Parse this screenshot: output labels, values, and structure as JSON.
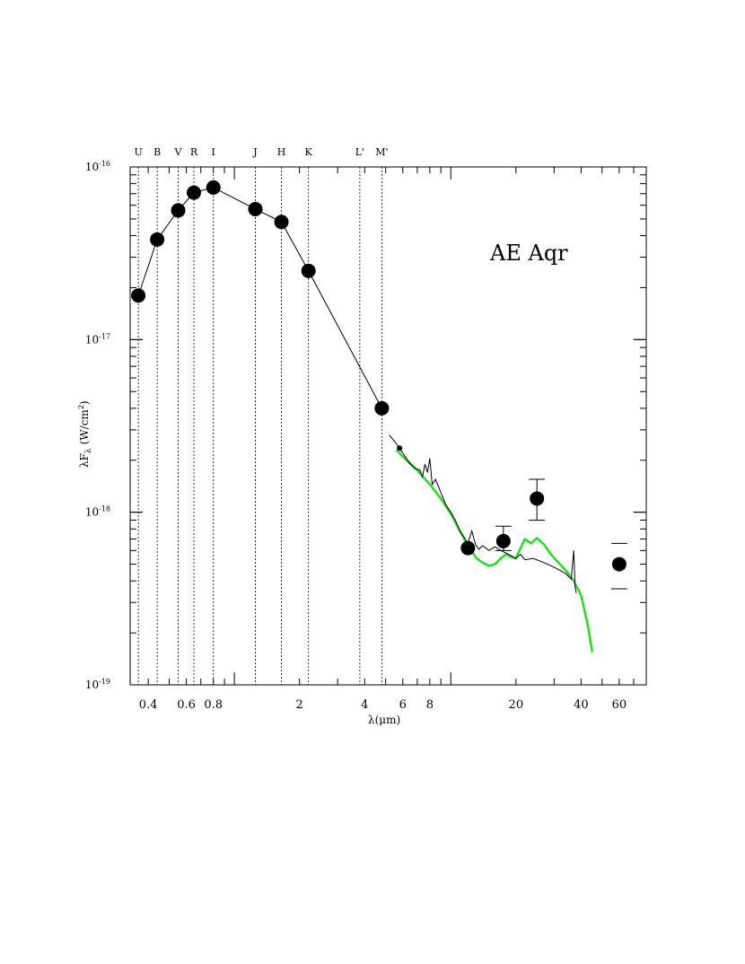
{
  "chart_data": {
    "type": "scatter",
    "title": "AE  Aqr",
    "xlabel": "λ(μm)",
    "ylabel": "λF",
    "ylabel_sub": "λ",
    "ylabel_units": "(W/cm",
    "ylabel_units_sup": "2",
    "ylabel_units_end": ")",
    "x_scale": "log",
    "y_scale": "log",
    "xlim": [
      0.33,
      80
    ],
    "ylim": [
      1e-19,
      1e-16
    ],
    "x_ticks": [
      {
        "value": 0.4,
        "label": "0.4"
      },
      {
        "value": 0.6,
        "label": "0.6"
      },
      {
        "value": 0.8,
        "label": "0.8"
      },
      {
        "value": 2,
        "label": "2"
      },
      {
        "value": 4,
        "label": "4"
      },
      {
        "value": 6,
        "label": "6"
      },
      {
        "value": 8,
        "label": "8"
      },
      {
        "value": 20,
        "label": "20"
      },
      {
        "value": 40,
        "label": "40"
      },
      {
        "value": 60,
        "label": "60"
      }
    ],
    "y_ticks": [
      {
        "value": 1e-16,
        "base": "10",
        "exp": "-16"
      },
      {
        "value": 1e-17,
        "base": "10",
        "exp": "-17"
      },
      {
        "value": 1e-18,
        "base": "10",
        "exp": "-18"
      },
      {
        "value": 1e-19,
        "base": "10",
        "exp": "-19"
      }
    ],
    "bands": [
      {
        "label": "U",
        "x": 0.36
      },
      {
        "label": "B",
        "x": 0.44
      },
      {
        "label": "V",
        "x": 0.55
      },
      {
        "label": "R",
        "x": 0.65
      },
      {
        "label": "I",
        "x": 0.8
      },
      {
        "label": "J",
        "x": 1.25
      },
      {
        "label": "H",
        "x": 1.65
      },
      {
        "label": "K",
        "x": 2.2
      },
      {
        "label": "L'",
        "x": 3.8
      },
      {
        "label": "M'",
        "x": 4.8
      }
    ],
    "photometry": [
      {
        "x": 0.36,
        "y": 1.8e-17
      },
      {
        "x": 0.44,
        "y": 3.8e-17
      },
      {
        "x": 0.55,
        "y": 5.6e-17
      },
      {
        "x": 0.65,
        "y": 7.1e-17
      },
      {
        "x": 0.8,
        "y": 7.6e-17
      },
      {
        "x": 1.25,
        "y": 5.7e-17
      },
      {
        "x": 1.65,
        "y": 4.8e-17
      },
      {
        "x": 2.2,
        "y": 2.5e-17
      },
      {
        "x": 4.8,
        "y": 4e-18
      }
    ],
    "sed_model_line": [
      {
        "x": 0.36,
        "y": 1.8e-17
      },
      {
        "x": 0.44,
        "y": 3.8e-17
      },
      {
        "x": 0.55,
        "y": 5.6e-17
      },
      {
        "x": 0.65,
        "y": 7.1e-17
      },
      {
        "x": 0.8,
        "y": 7.6e-17
      },
      {
        "x": 1.25,
        "y": 5.7e-17
      },
      {
        "x": 1.65,
        "y": 4.8e-17
      },
      {
        "x": 2.2,
        "y": 2.5e-17
      },
      {
        "x": 4.8,
        "y": 4e-18
      }
    ],
    "ir_points": [
      {
        "x": 5.8,
        "y": 2.35e-18,
        "small": true
      },
      {
        "x": 12,
        "y": 6.2e-19
      },
      {
        "x": 17.5,
        "y": 6.8e-19,
        "err_low": 6e-19,
        "err_high": 8.3e-19
      },
      {
        "x": 25,
        "y": 1.2e-18,
        "err_low": 9e-19,
        "err_high": 1.55e-18
      },
      {
        "x": 60,
        "y": 5e-19,
        "err_low": 3.6e-19,
        "err_high": 6.6e-19,
        "caps_only": true
      }
    ],
    "spectrum": [
      {
        "x": 5.2,
        "y": 2.8e-18
      },
      {
        "x": 5.6,
        "y": 2.5e-18
      },
      {
        "x": 6.0,
        "y": 2.2e-18
      },
      {
        "x": 6.4,
        "y": 1.95e-18
      },
      {
        "x": 6.8,
        "y": 1.8e-18
      },
      {
        "x": 7.2,
        "y": 1.75e-18
      },
      {
        "x": 7.4,
        "y": 1.6e-18
      },
      {
        "x": 7.6,
        "y": 1.9e-18
      },
      {
        "x": 7.8,
        "y": 1.7e-18
      },
      {
        "x": 8.0,
        "y": 2.05e-18
      },
      {
        "x": 8.2,
        "y": 1.45e-18
      },
      {
        "x": 8.5,
        "y": 1.55e-18
      },
      {
        "x": 9.0,
        "y": 1.3e-18
      },
      {
        "x": 9.5,
        "y": 1.1e-18
      },
      {
        "x": 10.0,
        "y": 1e-18
      },
      {
        "x": 10.5,
        "y": 9e-19
      },
      {
        "x": 11.0,
        "y": 7.8e-19
      },
      {
        "x": 11.5,
        "y": 7.2e-19
      },
      {
        "x": 12.0,
        "y": 6.6e-19
      },
      {
        "x": 12.5,
        "y": 7.8e-19
      },
      {
        "x": 13.0,
        "y": 6.5e-19
      },
      {
        "x": 13.5,
        "y": 6.1e-19
      },
      {
        "x": 14.0,
        "y": 6.4e-19
      },
      {
        "x": 15.0,
        "y": 6e-19
      },
      {
        "x": 16.0,
        "y": 6.3e-19
      },
      {
        "x": 17.0,
        "y": 6e-19
      },
      {
        "x": 18.0,
        "y": 5.8e-19
      },
      {
        "x": 19.0,
        "y": 5.6e-19
      },
      {
        "x": 20.0,
        "y": 5.4e-19
      },
      {
        "x": 21.0,
        "y": 5.7e-19
      },
      {
        "x": 22.0,
        "y": 5.3e-19
      },
      {
        "x": 24.0,
        "y": 5.4e-19
      },
      {
        "x": 26.0,
        "y": 5.2e-19
      },
      {
        "x": 28.0,
        "y": 5e-19
      },
      {
        "x": 30.0,
        "y": 4.8e-19
      },
      {
        "x": 32.0,
        "y": 4.6e-19
      },
      {
        "x": 34.0,
        "y": 4.4e-19
      },
      {
        "x": 36.0,
        "y": 4.1e-19
      },
      {
        "x": 37.0,
        "y": 6e-19
      },
      {
        "x": 37.5,
        "y": 3.7e-19
      },
      {
        "x": 38.0,
        "y": 3.4e-19
      }
    ],
    "model_curve": [
      {
        "x": 5.6,
        "y": 2.3e-18
      },
      {
        "x": 6.0,
        "y": 2.1e-18
      },
      {
        "x": 7.0,
        "y": 1.75e-18
      },
      {
        "x": 8.0,
        "y": 1.45e-18
      },
      {
        "x": 9.0,
        "y": 1.2e-18
      },
      {
        "x": 10.0,
        "y": 9.8e-19
      },
      {
        "x": 11.0,
        "y": 7.8e-19
      },
      {
        "x": 12.0,
        "y": 6.4e-19
      },
      {
        "x": 13.0,
        "y": 5.5e-19
      },
      {
        "x": 14.0,
        "y": 5.1e-19
      },
      {
        "x": 15.0,
        "y": 4.9e-19
      },
      {
        "x": 16.0,
        "y": 5e-19
      },
      {
        "x": 17.0,
        "y": 5.4e-19
      },
      {
        "x": 18.0,
        "y": 5.7e-19
      },
      {
        "x": 19.0,
        "y": 5.5e-19
      },
      {
        "x": 20.0,
        "y": 5.4e-19
      },
      {
        "x": 21.0,
        "y": 6.2e-19
      },
      {
        "x": 22.0,
        "y": 7e-19
      },
      {
        "x": 23.5,
        "y": 6.6e-19
      },
      {
        "x": 25.0,
        "y": 7.1e-19
      },
      {
        "x": 27.0,
        "y": 6.5e-19
      },
      {
        "x": 29.0,
        "y": 5.7e-19
      },
      {
        "x": 31.0,
        "y": 5.2e-19
      },
      {
        "x": 34.0,
        "y": 4.6e-19
      },
      {
        "x": 37.0,
        "y": 4e-19
      },
      {
        "x": 40.0,
        "y": 3.3e-19
      },
      {
        "x": 43.0,
        "y": 2.2e-19
      },
      {
        "x": 45.0,
        "y": 1.55e-19
      }
    ],
    "colors": {
      "axes": "#000000",
      "points": "#000000",
      "spectrum": "#000000",
      "model_curve": "#22dd22",
      "band_lines": "#000000"
    }
  }
}
